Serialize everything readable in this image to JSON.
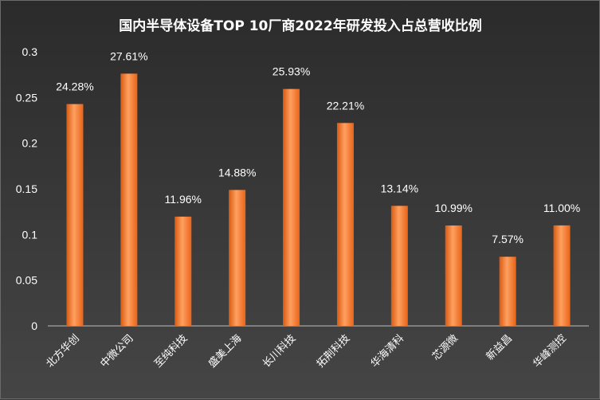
{
  "chart_data": {
    "type": "bar",
    "title": "国内半导体设备TOP 10厂商2022年研发投入占总营收比例",
    "categories": [
      "北方华创",
      "中微公司",
      "至纯科技",
      "盛美上海",
      "长川科技",
      "拓荆科技",
      "华海清科",
      "芯源微",
      "新益昌",
      "华峰测控"
    ],
    "values": [
      0.2428,
      0.2761,
      0.1196,
      0.1488,
      0.2593,
      0.2221,
      0.1314,
      0.1099,
      0.0757,
      0.11
    ],
    "data_labels": [
      "24.28%",
      "27.61%",
      "11.96%",
      "14.88%",
      "25.93%",
      "22.21%",
      "13.14%",
      "10.99%",
      "7.57%",
      "11.00%"
    ],
    "y_ticks": [
      "0",
      "0.05",
      "0.1",
      "0.15",
      "0.2",
      "0.25",
      "0.3"
    ],
    "ylim": [
      0,
      0.3
    ],
    "xlabel": "",
    "ylabel": "",
    "grid": false,
    "bar_color": "#f07020"
  }
}
